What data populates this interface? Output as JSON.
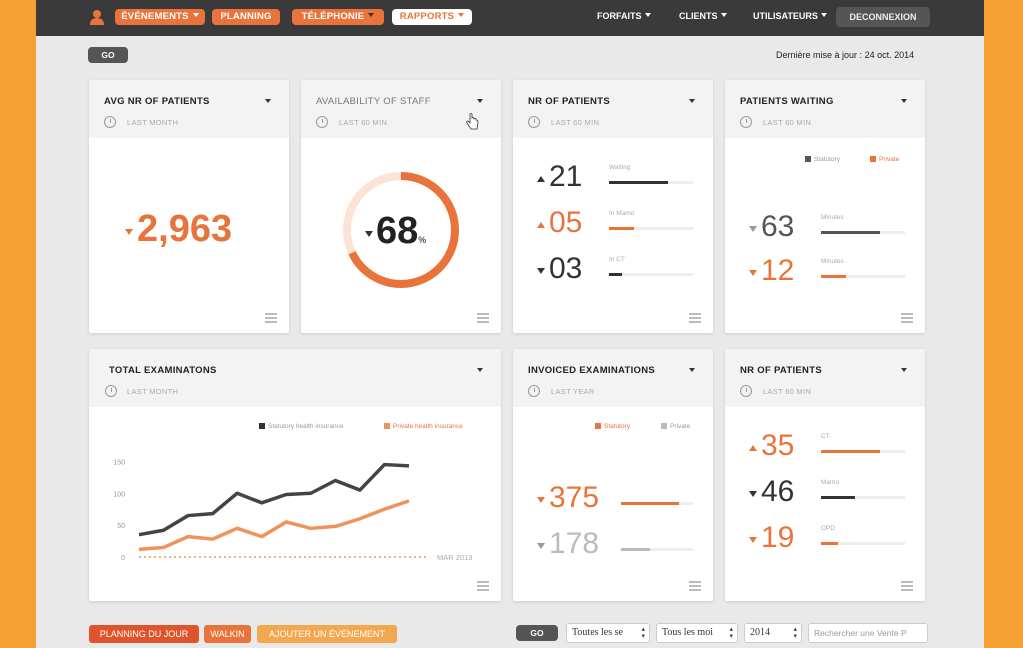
{
  "nav": {
    "items": [
      {
        "label": "ÉVÉNEMENTS"
      },
      {
        "label": "PLANNING"
      },
      {
        "label": "TÉLÉPHONIE"
      },
      {
        "label": "RAPPORTS"
      }
    ],
    "right": [
      {
        "label": "FORFAITS"
      },
      {
        "label": "CLIENTS"
      },
      {
        "label": "UTILISATEURS"
      }
    ],
    "logout": "DECONNEXION"
  },
  "toolbar": {
    "go_label": "GO",
    "last_update_label": "Dernière mise à jour :",
    "last_update_date": "24 oct. 2014"
  },
  "cards": {
    "avg_patients": {
      "title": "AVG NR OF PATIENTS",
      "period": "LAST MONTH",
      "value": "2,963",
      "trend": "down"
    },
    "staff": {
      "title": "AVAILABILITY OF STAFF",
      "period": "LAST 60 MIN",
      "value": "68",
      "unit": "%",
      "percent": 68,
      "trend": "down"
    },
    "nr_patients": {
      "title": "NR OF PATIENTS",
      "period": "LAST 60 MIN",
      "rows": [
        {
          "value": "21",
          "label": "Waiting",
          "trend": "up",
          "color": "#333333",
          "fill": 0.7
        },
        {
          "value": "05",
          "label": "In Mamo",
          "trend": "up",
          "color": "#e8743b",
          "fill": 0.3
        },
        {
          "value": "03",
          "label": "In CT",
          "trend": "down",
          "color": "#333333",
          "fill": 0.15
        }
      ]
    },
    "patients_waiting": {
      "title": "PATIENTS WAITING",
      "period": "LAST 60 MIN",
      "legend": [
        "Statutory",
        "Private"
      ],
      "rows": [
        {
          "value": "63",
          "label": "Minutes",
          "trend": "down",
          "color": "#555555",
          "fill": 0.7
        },
        {
          "value": "12",
          "label": "Minutes",
          "trend": "down",
          "color": "#e8743b",
          "fill": 0.3
        }
      ]
    },
    "total_exams": {
      "title": "TOTAL EXAMINATONS",
      "period": "LAST MONTH",
      "legend": [
        "Statutory health insurance",
        "Private health insurance"
      ]
    },
    "invoiced_exams": {
      "title": "INVOICED EXAMINATIONS",
      "period": "LAST YEAR",
      "legend": [
        "Statutory",
        "Private"
      ],
      "rows": [
        {
          "value": "375",
          "trend": "down",
          "color": "#e8743b",
          "fill": 0.8
        },
        {
          "value": "178",
          "trend": "down",
          "color": "#bbbbbb",
          "fill": 0.4
        }
      ]
    },
    "nr_patients2": {
      "title": "NR OF PATIENTS",
      "period": "LAST 60 MIN",
      "rows": [
        {
          "value": "35",
          "label": "CT",
          "trend": "up",
          "color": "#e8743b",
          "fill": 0.7
        },
        {
          "value": "46",
          "label": "Mamo",
          "trend": "down",
          "color": "#333333",
          "fill": 0.4
        },
        {
          "value": "19",
          "label": "OPD",
          "trend": "down",
          "color": "#e8743b",
          "fill": 0.2
        }
      ]
    }
  },
  "chart_data": {
    "type": "line",
    "x": [
      1,
      2,
      3,
      4,
      5,
      6,
      7,
      8,
      9,
      10,
      11,
      12
    ],
    "series": [
      {
        "name": "Statutory health insurance",
        "color": "#444444",
        "values": [
          35,
          42,
          65,
          68,
          100,
          85,
          98,
          100,
          120,
          105,
          145,
          143
        ]
      },
      {
        "name": "Private health insurance",
        "color": "#f0935a",
        "values": [
          12,
          15,
          32,
          28,
          45,
          32,
          55,
          45,
          48,
          60,
          75,
          88
        ]
      }
    ],
    "yticks": [
      0,
      50,
      100,
      150
    ],
    "ylim": [
      0,
      160
    ],
    "xlabel": "MAR 2013"
  },
  "footer": {
    "buttons": [
      "PLANNING DU JOUR",
      "WALKIN",
      "AJOUTER UN ÉVÉNEMENT"
    ],
    "go_label": "GO",
    "selects": [
      "Toutes les se",
      "Tous les moi",
      "2014"
    ],
    "search_placeholder": "Rechercher une Vente P"
  }
}
